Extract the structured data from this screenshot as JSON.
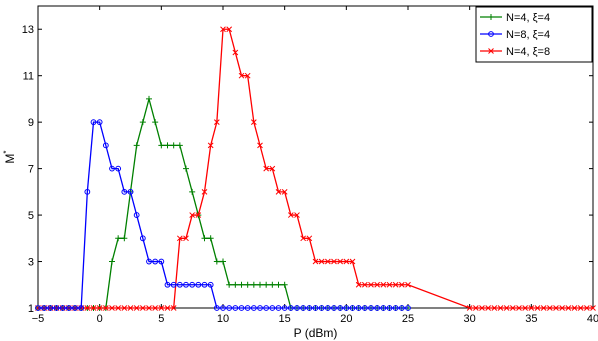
{
  "chart_data": {
    "type": "line",
    "title": "",
    "xlabel": "P (dBm)",
    "ylabel": "M",
    "ylabel_superscript": "*",
    "xlim": [
      -5,
      40
    ],
    "ylim": [
      1,
      14
    ],
    "xticks": [
      -5,
      0,
      5,
      10,
      15,
      20,
      25,
      30,
      35,
      40
    ],
    "yticks": [
      1,
      3,
      5,
      7,
      9,
      11,
      13
    ],
    "grid": false,
    "legend_position": "top-right",
    "series": [
      {
        "name": "N=4, ξ=4",
        "color": "#008000",
        "marker": "plus",
        "x": [
          -5,
          -4.5,
          -4,
          -3.5,
          -3,
          -2.5,
          -2,
          -1.5,
          -1,
          -0.5,
          0,
          0.5,
          1,
          1.5,
          2,
          2.5,
          3,
          3.5,
          4,
          4.5,
          5,
          5.5,
          6,
          6.5,
          7,
          7.5,
          8,
          8.5,
          9,
          9.5,
          10,
          10.5,
          11,
          11.5,
          12,
          12.5,
          13,
          13.5,
          14,
          14.5,
          15,
          15.5,
          16,
          16.5,
          17,
          17.5,
          18,
          18.5,
          19,
          19.5,
          20,
          20.5,
          21,
          21.5,
          22,
          22.5,
          23,
          23.5,
          24,
          24.5,
          25
        ],
        "y": [
          1,
          1,
          1,
          1,
          1,
          1,
          1,
          1,
          1,
          1,
          1,
          1,
          3,
          4,
          4,
          6,
          8,
          9,
          10,
          9,
          8,
          8,
          8,
          8,
          7,
          6,
          5,
          4,
          4,
          3,
          3,
          2,
          2,
          2,
          2,
          2,
          2,
          2,
          2,
          2,
          2,
          1,
          1,
          1,
          1,
          1,
          1,
          1,
          1,
          1,
          1,
          1,
          1,
          1,
          1,
          1,
          1,
          1,
          1,
          1,
          1
        ]
      },
      {
        "name": "N=8, ξ=4",
        "color": "#0000ff",
        "marker": "circle",
        "x": [
          -5,
          -4.5,
          -4,
          -3.5,
          -3,
          -2.5,
          -2,
          -1.5,
          -1,
          -0.5,
          0,
          0.5,
          1,
          1.5,
          2,
          2.5,
          3,
          3.5,
          4,
          4.5,
          5,
          5.5,
          6,
          6.5,
          7,
          7.5,
          8,
          8.5,
          9,
          9.5,
          10,
          10.5,
          11,
          11.5,
          12,
          12.5,
          13,
          13.5,
          14,
          14.5,
          15,
          15.5,
          16,
          16.5,
          17,
          17.5,
          18,
          18.5,
          19,
          19.5,
          20,
          20.5,
          21,
          21.5,
          22,
          22.5,
          23,
          23.5,
          24,
          24.5,
          25
        ],
        "y": [
          1,
          1,
          1,
          1,
          1,
          1,
          1,
          1,
          6,
          9,
          9,
          8,
          7,
          7,
          6,
          6,
          5,
          4,
          3,
          3,
          3,
          2,
          2,
          2,
          2,
          2,
          2,
          2,
          2,
          1,
          1,
          1,
          1,
          1,
          1,
          1,
          1,
          1,
          1,
          1,
          1,
          1,
          1,
          1,
          1,
          1,
          1,
          1,
          1,
          1,
          1,
          1,
          1,
          1,
          1,
          1,
          1,
          1,
          1,
          1,
          1
        ]
      },
      {
        "name": "N=4, ξ=8",
        "color": "#ff0000",
        "marker": "cross",
        "x": [
          -5,
          -4.5,
          -4,
          -3.5,
          -3,
          -2.5,
          -2,
          -1.5,
          -1,
          -0.5,
          0,
          0.5,
          1,
          1.5,
          2,
          2.5,
          3,
          3.5,
          4,
          4.5,
          5,
          5.5,
          6,
          6.5,
          7,
          7.5,
          8,
          8.5,
          9,
          9.5,
          10,
          10.5,
          11,
          11.5,
          12,
          12.5,
          13,
          13.5,
          14,
          14.5,
          15,
          15.5,
          16,
          16.5,
          17,
          17.5,
          18,
          18.5,
          19,
          19.5,
          20,
          20.5,
          21,
          21.5,
          22,
          22.5,
          23,
          23.5,
          24,
          24.5,
          25,
          30,
          30.5,
          31,
          31.5,
          32,
          32.5,
          33,
          33.5,
          34,
          34.5,
          35,
          35.5,
          36,
          36.5,
          37,
          37.5,
          38,
          38.5,
          39,
          39.5,
          40
        ],
        "y": [
          1,
          1,
          1,
          1,
          1,
          1,
          1,
          1,
          1,
          1,
          1,
          1,
          1,
          1,
          1,
          1,
          1,
          1,
          1,
          1,
          1,
          1,
          1,
          4,
          4,
          5,
          5,
          6,
          8,
          9,
          13,
          13,
          12,
          11,
          11,
          9,
          8,
          7,
          7,
          6,
          6,
          5,
          5,
          4,
          4,
          3,
          3,
          3,
          3,
          3,
          3,
          3,
          2,
          2,
          2,
          2,
          2,
          2,
          2,
          2,
          2,
          1,
          1,
          1,
          1,
          1,
          1,
          1,
          1,
          1,
          1,
          1,
          1,
          1,
          1,
          1,
          1,
          1,
          1,
          1,
          1,
          1
        ]
      }
    ]
  }
}
